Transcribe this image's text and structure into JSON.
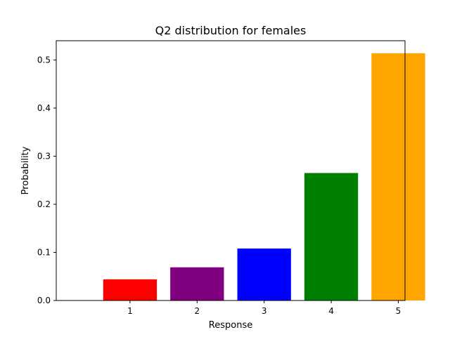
{
  "chart_data": {
    "type": "bar",
    "title": "Q2 distribution for females",
    "xlabel": "Response",
    "ylabel": "Probability",
    "categories": [
      "1",
      "2",
      "3",
      "4",
      "5"
    ],
    "values": [
      0.044,
      0.069,
      0.108,
      0.265,
      0.514
    ],
    "colors": [
      "#ff0000",
      "#800080",
      "#0000ff",
      "#008000",
      "#ffa500"
    ],
    "ylim": [
      0,
      0.54
    ],
    "yticks": [
      0.0,
      0.1,
      0.2,
      0.3,
      0.4,
      0.5
    ],
    "ytick_labels": [
      "0.0",
      "0.1",
      "0.2",
      "0.3",
      "0.4",
      "0.5"
    ],
    "grid": false,
    "legend": "none"
  }
}
